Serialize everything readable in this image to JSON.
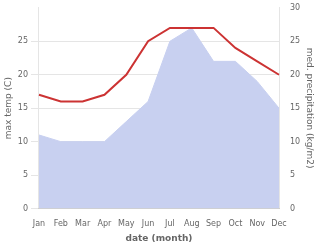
{
  "chart_data": {
    "type": "line",
    "categories": [
      "Jan",
      "Feb",
      "Mar",
      "Apr",
      "May",
      "Jun",
      "Jul",
      "Aug",
      "Sep",
      "Oct",
      "Nov",
      "Dec"
    ],
    "series": [
      {
        "type": "area",
        "color": "#c8d0f0",
        "axis": "y2",
        "values": [
          11,
          10,
          10,
          10,
          13,
          16,
          25,
          27,
          22,
          22,
          19,
          15
        ]
      },
      {
        "type": "line",
        "color": "#cc3333",
        "values": [
          17,
          16,
          16,
          17,
          20,
          25,
          27,
          27,
          27,
          24,
          22,
          20
        ]
      }
    ],
    "xlabel": "date (month)",
    "ylabel": "max temp (C)",
    "y2label": "med. precipitation (kg/m2)",
    "ylim": [
      0,
      30
    ],
    "yticks": [
      0,
      5,
      10,
      15,
      20,
      25
    ],
    "y2lim": [
      0,
      30
    ],
    "y2ticks": [
      0,
      5,
      10,
      15,
      20,
      25,
      30
    ],
    "grid": true
  }
}
